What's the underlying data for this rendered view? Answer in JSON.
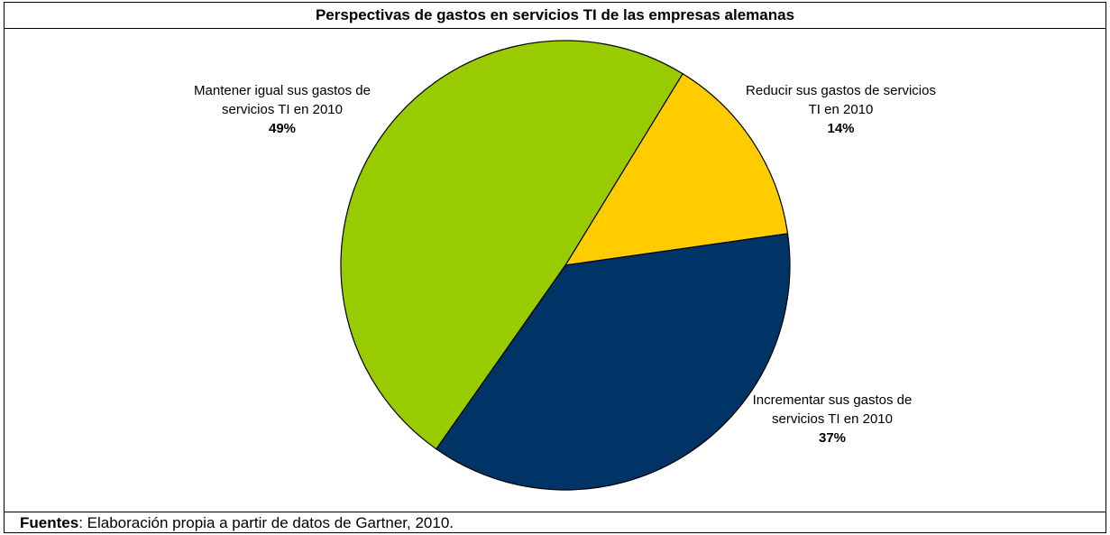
{
  "chart_data": {
    "type": "pie",
    "title": "Perspectivas de gastos en servicios TI de las empresas alemanas",
    "slices": [
      {
        "label": "Reducir sus gastos de servicios TI en 2010",
        "value": 14,
        "value_label": "14%",
        "color": "#FFCC00"
      },
      {
        "label": "Incrementar sus gastos de servicios TI en 2010",
        "value": 37,
        "value_label": "37%",
        "color": "#003366"
      },
      {
        "label": "Mantener igual sus gastos de servicios TI en 2010",
        "value": 49,
        "value_label": "49%",
        "color": "#99CC00"
      }
    ]
  },
  "source": {
    "label": "Fuentes",
    "text": ": Elaboración propia a partir de datos de Gartner, 2010."
  }
}
